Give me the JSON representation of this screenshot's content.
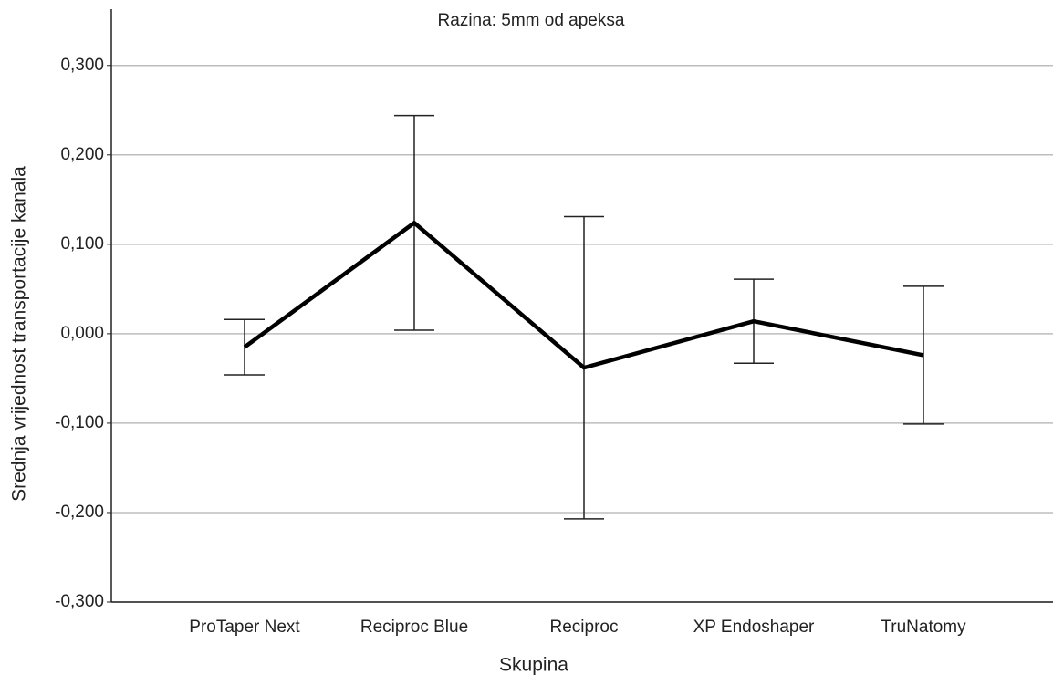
{
  "chart_data": {
    "type": "line",
    "title": "Razina: 5mm od apeksa",
    "x_label": "Skupina",
    "y_label": "Srednja vrijednost transportacije kanala",
    "categories": [
      "ProTaper Next",
      "Reciproc Blue",
      "Reciproc",
      "XP Endoshaper",
      "TruNatomy"
    ],
    "series": [
      {
        "color": "#000000",
        "values": [
          -0.015,
          0.124,
          -0.038,
          0.014,
          -0.024
        ],
        "error": [
          0.031,
          0.12,
          0.169,
          0.047,
          0.077
        ]
      }
    ],
    "ylim": [
      -0.3,
      0.363
    ],
    "yticks": [
      {
        "value": -0.3,
        "label": "-0,300"
      },
      {
        "value": -0.2,
        "label": "-0,200"
      },
      {
        "value": -0.1,
        "label": "-0,100"
      },
      {
        "value": 0,
        "label": "0,000"
      },
      {
        "value": 0.1,
        "label": "0,100"
      },
      {
        "value": 0.2,
        "label": "0,200"
      },
      {
        "value": 0.3,
        "label": "0,300"
      }
    ],
    "grid": true
  }
}
